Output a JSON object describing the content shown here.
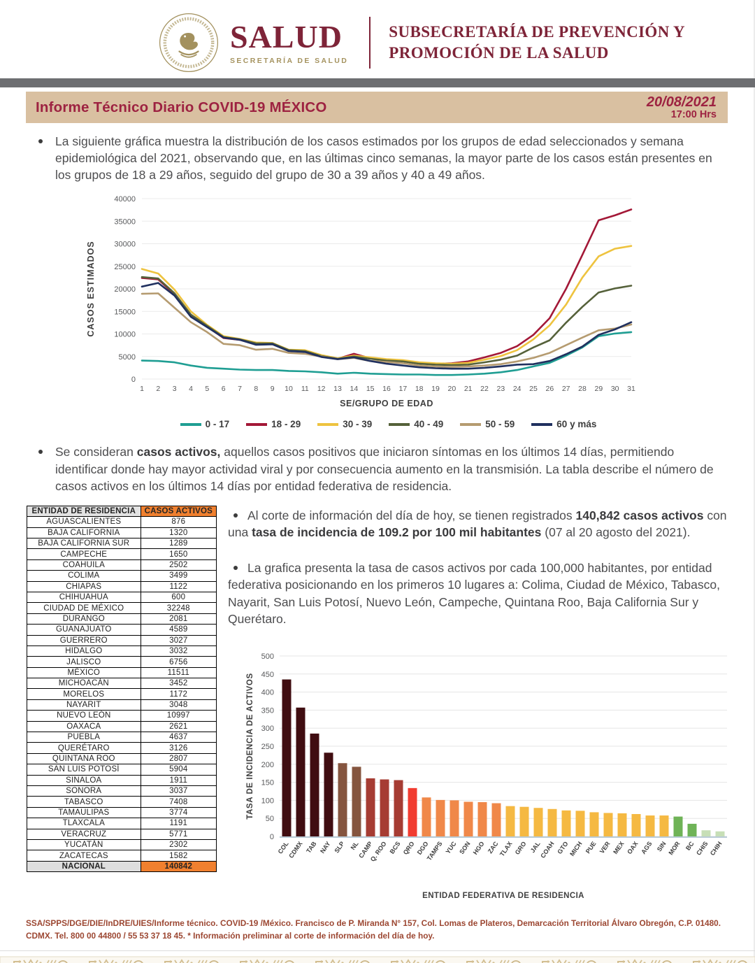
{
  "header": {
    "logo_title": "SALUD",
    "logo_subtitle": "SECRETARÍA DE SALUD",
    "seal_icon": "mexican-coat-of-arms-seal",
    "org_line1": "SUBSECRETARÍA DE PREVENCIÓN Y",
    "org_line2": "PROMOCIÓN DE LA SALUD"
  },
  "title_bar": {
    "title": "Informe Técnico Diario COVID-19 MÉXICO",
    "date": "20/08/2021",
    "time": "17:00 Hrs"
  },
  "bullets": {
    "estimated_cases": [
      {
        "t": "La siguiente gráfica muestra la distribución de los casos estimados por los grupos de edad seleccionados y semana epidemiológica del 2021, observando que, en las últimas cinco semanas, la mayor parte de los casos están presentes en los grupos de 18 a 29 años, seguido del grupo de 30 a 39 años y 40 a 49 años.",
        "b": false
      }
    ],
    "active_cases": [
      {
        "t": "Se consideran ",
        "b": false
      },
      {
        "t": "casos activos,",
        "b": true
      },
      {
        "t": " aquellos casos positivos que iniciaron síntomas en los últimos 14 días, permitiendo identificar donde hay mayor actividad viral y por consecuencia aumento en la transmisión. La tabla describe el número de casos activos en los últimos 14 días por entidad federativa de residencia.",
        "b": false
      }
    ],
    "registered_today": [
      {
        "t": "Al corte de información del día de hoy, se tienen registrados ",
        "b": false
      },
      {
        "t": "140,842 casos activos",
        "b": true
      },
      {
        "t": " con una ",
        "b": false
      },
      {
        "t": "tasa de incidencia de 109.2 por 100 mil habitantes",
        "b": true
      },
      {
        "t": " (07 al 20 agosto del 2021).",
        "b": false
      }
    ],
    "top10": [
      {
        "t": "La grafica presenta la tasa de casos activos por cada 100,000 habitantes, por entidad federativa posicionando en los primeros 10 lugares a: Colima, Ciudad de México, Tabasco, Nayarit, San Luis Potosí, Nuevo León, Campeche, Quintana Roo, Baja California Sur y Querétaro.",
        "b": false
      }
    ]
  },
  "table": {
    "headers": [
      "ENTIDAD DE RESIDENCIA",
      "CASOS ACTIVOS"
    ],
    "rows": [
      [
        "AGUASCALIENTES",
        "876"
      ],
      [
        "BAJA CALIFORNIA",
        "1320"
      ],
      [
        "BAJA CALIFORNIA SUR",
        "1289"
      ],
      [
        "CAMPECHE",
        "1650"
      ],
      [
        "COAHUILA",
        "2502"
      ],
      [
        "COLIMA",
        "3499"
      ],
      [
        "CHIAPAS",
        "1122"
      ],
      [
        "CHIHUAHUA",
        "600"
      ],
      [
        "CIUDAD DE MÉXICO",
        "32248"
      ],
      [
        "DURANGO",
        "2081"
      ],
      [
        "GUANAJUATO",
        "4589"
      ],
      [
        "GUERRERO",
        "3027"
      ],
      [
        "HIDALGO",
        "3032"
      ],
      [
        "JALISCO",
        "6756"
      ],
      [
        "MÉXICO",
        "11511"
      ],
      [
        "MICHOACÁN",
        "3452"
      ],
      [
        "MORELOS",
        "1172"
      ],
      [
        "NAYARIT",
        "3048"
      ],
      [
        "NUEVO LEÓN",
        "10997"
      ],
      [
        "OAXACA",
        "2621"
      ],
      [
        "PUEBLA",
        "4637"
      ],
      [
        "QUERÉTARO",
        "3126"
      ],
      [
        "QUINTANA ROO",
        "2807"
      ],
      [
        "SAN LUIS POTOSÍ",
        "5904"
      ],
      [
        "SINALOA",
        "1911"
      ],
      [
        "SONORA",
        "3037"
      ],
      [
        "TABASCO",
        "7408"
      ],
      [
        "TAMAULIPAS",
        "3774"
      ],
      [
        "TLAXCALA",
        "1191"
      ],
      [
        "VERACRUZ",
        "5771"
      ],
      [
        "YUCATÁN",
        "2302"
      ],
      [
        "ZACATECAS",
        "1582"
      ]
    ],
    "total_row": [
      "NACIONAL",
      "140842"
    ]
  },
  "chart_data": [
    {
      "type": "line",
      "title": "Casos estimados por grupo de edad y semana epidemiológica 2021",
      "xlabel": "SE/GRUPO DE EDAD",
      "ylabel": "CASOS ESTIMADOS",
      "x": [
        1,
        2,
        3,
        4,
        5,
        6,
        7,
        8,
        9,
        10,
        11,
        12,
        13,
        14,
        15,
        16,
        17,
        18,
        19,
        20,
        21,
        22,
        23,
        24,
        25,
        26,
        27,
        28,
        29,
        30,
        31
      ],
      "ylim": [
        0,
        40000
      ],
      "ytick_step": 5000,
      "grid": true,
      "legend_position": "bottom",
      "series": [
        {
          "name": "0 - 17",
          "color": "#1f9e93",
          "values": [
            4100,
            4000,
            3700,
            3000,
            2500,
            2300,
            2100,
            2000,
            2000,
            1800,
            1700,
            1500,
            1200,
            1400,
            1200,
            1100,
            1000,
            1000,
            900,
            900,
            1000,
            1200,
            1500,
            2000,
            2800,
            3600,
            5200,
            7000,
            9500,
            10100,
            10400
          ]
        },
        {
          "name": "18 - 29",
          "color": "#a31837",
          "values": [
            22400,
            22100,
            18800,
            14000,
            11600,
            9100,
            8700,
            7700,
            7800,
            6300,
            6100,
            5000,
            4500,
            5600,
            4600,
            4300,
            4000,
            3500,
            3400,
            3500,
            3900,
            4800,
            5800,
            7300,
            9800,
            13500,
            20000,
            27500,
            35200,
            36300,
            37600
          ]
        },
        {
          "name": "30 - 39",
          "color": "#eec33f",
          "values": [
            24400,
            23400,
            19800,
            15000,
            12000,
            9500,
            8900,
            8100,
            8000,
            6500,
            6400,
            5300,
            4600,
            5200,
            4800,
            4400,
            4200,
            3700,
            3500,
            3400,
            3600,
            4300,
            5100,
            6400,
            8800,
            11900,
            16500,
            22500,
            27200,
            28900,
            29500
          ]
        },
        {
          "name": "40 - 49",
          "color": "#55613a",
          "values": [
            22600,
            22300,
            19000,
            14300,
            11800,
            9300,
            8800,
            7900,
            7900,
            6400,
            6200,
            5100,
            4500,
            5000,
            4500,
            4100,
            3900,
            3400,
            3200,
            3100,
            3200,
            3700,
            4300,
            5200,
            7000,
            8600,
            12500,
            16000,
            19200,
            20100,
            20700
          ]
        },
        {
          "name": "50 - 59",
          "color": "#b59b70",
          "values": [
            18900,
            19000,
            15800,
            12600,
            10400,
            7800,
            7500,
            6500,
            6700,
            5800,
            5600,
            5000,
            4400,
            4700,
            4000,
            3800,
            3500,
            3000,
            2800,
            2700,
            2800,
            3000,
            3300,
            3900,
            4700,
            5800,
            7500,
            9200,
            10800,
            11200,
            12100
          ]
        },
        {
          "name": "60 y más",
          "color": "#20305f",
          "values": [
            20500,
            21300,
            18500,
            13800,
            11500,
            9200,
            8700,
            7600,
            7700,
            6200,
            6000,
            4900,
            4400,
            4800,
            4000,
            3400,
            3000,
            2600,
            2400,
            2300,
            2300,
            2500,
            2800,
            3200,
            3300,
            4000,
            5500,
            7200,
            9800,
            11000,
            12600
          ]
        }
      ]
    },
    {
      "type": "bar",
      "title": "Tasa de incidencia de casos activos por 100 mil habitantes",
      "xlabel": "ENTIDAD FEDERATIVA DE RESIDENCIA",
      "ylabel": "TASA DE INCIDENCIA DE ACTIVOS",
      "ylim": [
        0,
        500
      ],
      "ytick_step": 50,
      "grid": true,
      "categories": [
        "COL",
        "CDMX",
        "TAB",
        "NAY",
        "SLP",
        "NL",
        "CAMP",
        "Q. ROO",
        "BCS",
        "QRO",
        "DGO",
        "TAMPS",
        "YUC",
        "SON",
        "HGO",
        "ZAC",
        "TLAX",
        "GRO",
        "JAL",
        "COAH",
        "GTO",
        "MICH",
        "PUE",
        "VER",
        "MEX",
        "OAX",
        "AGS",
        "SIN",
        "MOR",
        "BC",
        "CHIS",
        "CHIH"
      ],
      "values": [
        435,
        357,
        285,
        232,
        203,
        193,
        161,
        158,
        156,
        134,
        108,
        101,
        100,
        96,
        95,
        92,
        84,
        82,
        79,
        76,
        72,
        71,
        67,
        65,
        64,
        62,
        58,
        58,
        55,
        35,
        17,
        14
      ],
      "bar_colors": [
        "#400d11",
        "#400d11",
        "#400d11",
        "#400d11",
        "#85553f",
        "#85553f",
        "#a63c33",
        "#a63c33",
        "#a63c33",
        "#f13c31",
        "#f08849",
        "#f08849",
        "#f08849",
        "#f08849",
        "#f08849",
        "#f08849",
        "#f5b942",
        "#f5b942",
        "#f5b942",
        "#f5b942",
        "#f5b942",
        "#f5b942",
        "#f5b942",
        "#f5b942",
        "#f5b942",
        "#f5b942",
        "#f5b942",
        "#f5b942",
        "#6fb357",
        "#6fb357",
        "#c7dfb7",
        "#c7dfb7"
      ]
    }
  ],
  "footer": {
    "text": "SSA/SPPS/DGE/DIE/InDRE/UIES/Informe técnico. COVID-19 /México. Francisco de P. Miranda N° 157, Col. Lomas de Plateros, Demarcación Territorial Álvaro Obregón, C.P. 01480. CDMX. Tel. 800 00 44800 / 55 53 37 18 45. * Información preliminar al corte de información del día de hoy."
  },
  "colors": {
    "brand_maroon": "#7e2438",
    "title_maroon": "#9d2241",
    "brand_gold": "#a5935f",
    "tan_bar": "#d9c0a1",
    "gray_band": "#6d6e71",
    "table_header_gray": "#e3e3e3",
    "table_accent_orange": "#f0802f",
    "ornament_tan": "#d3bf92"
  }
}
